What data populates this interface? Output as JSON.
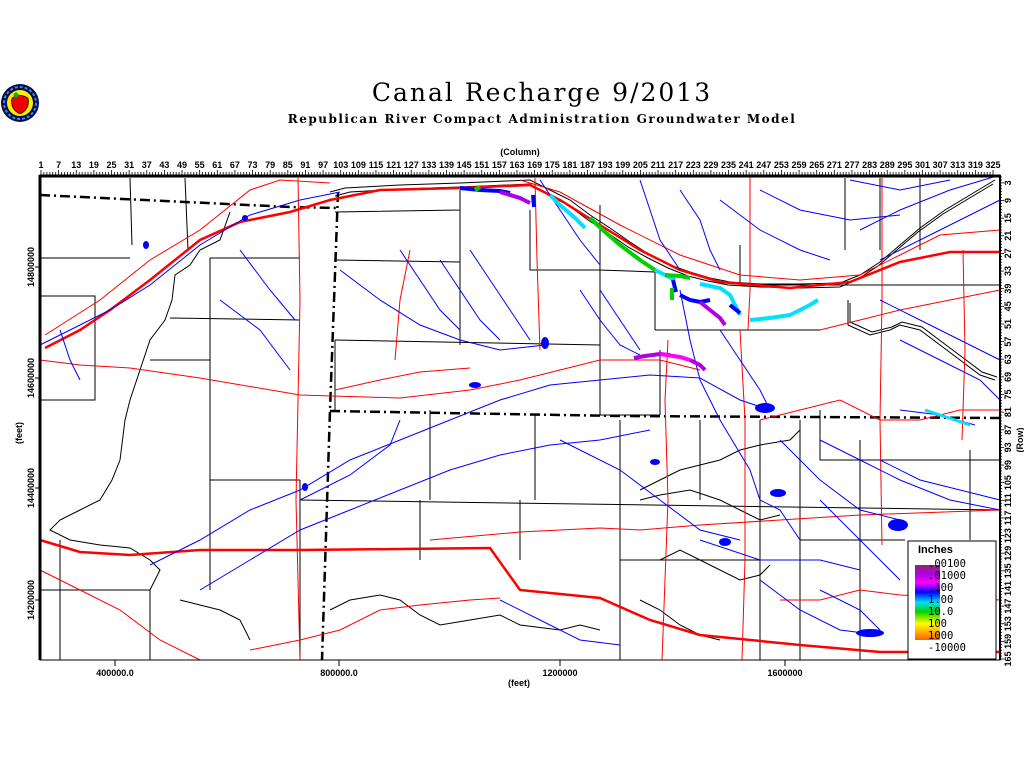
{
  "header": {
    "title": "Canal Recharge 9/2013",
    "subtitle": "Republican River Compact Administration Groundwater Model",
    "logo": "apple-seal-logo"
  },
  "axes": {
    "column_label": "(Column)",
    "row_label": "(Row)",
    "x_feet_label": "(feet)",
    "y_feet_label": "(feet)",
    "column_ticks": [
      1,
      7,
      13,
      19,
      25,
      31,
      37,
      43,
      49,
      55,
      61,
      67,
      73,
      79,
      85,
      91,
      97,
      103,
      109,
      115,
      121,
      127,
      133,
      139,
      145,
      151,
      157,
      163,
      169,
      175,
      181,
      187,
      193,
      199,
      205,
      211,
      217,
      223,
      229,
      235,
      241,
      247,
      253,
      259,
      265,
      271,
      277,
      283,
      289,
      295,
      301,
      307,
      313,
      319,
      325
    ],
    "row_ticks": [
      3,
      9,
      15,
      21,
      27,
      33,
      39,
      45,
      51,
      57,
      63,
      69,
      75,
      81,
      87,
      93,
      99,
      105,
      111,
      117,
      123,
      129,
      135,
      141,
      147,
      153,
      159,
      165
    ],
    "x_feet_ticks": [
      "400000.0",
      "800000.0",
      "1200000",
      "1600000"
    ],
    "y_feet_ticks": [
      "14800000",
      "14600000",
      "14400000",
      "14200000"
    ]
  },
  "legend": {
    "title": "Inches",
    "labels": [
      ".00100",
      ".01000",
      ".100",
      "1.00",
      "10.0",
      "100",
      "1000",
      "-10000"
    ],
    "colors": [
      "#8b2a6b",
      "#b000e0",
      "#ff00ff",
      "#0000ff",
      "#00e0ff",
      "#00d000",
      "#ffff00",
      "#ff6000"
    ]
  },
  "map_colors": {
    "roads": "#ff0000",
    "streams": "#0000ff",
    "boundaries": "#000000"
  }
}
